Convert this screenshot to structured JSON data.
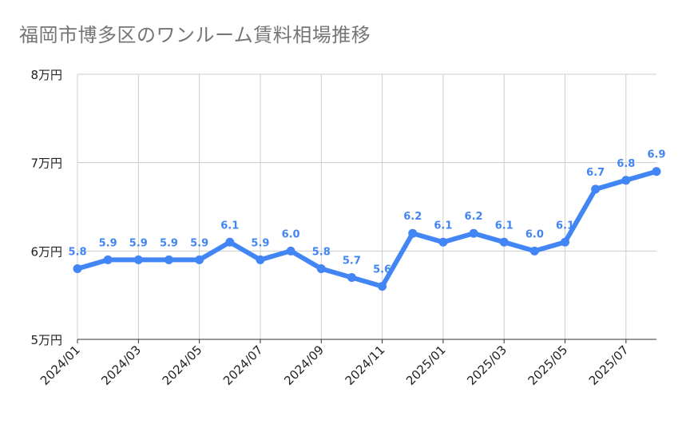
{
  "chart_data": {
    "type": "line",
    "title": "福岡市博多区のワンルーム賃料相場推移",
    "xlabel": "",
    "ylabel": "",
    "x": [
      "2024/01",
      "2024/02",
      "2024/03",
      "2024/04",
      "2024/05",
      "2024/06",
      "2024/07",
      "2024/08",
      "2024/09",
      "2024/10",
      "2024/11",
      "2024/12",
      "2025/01",
      "2025/02",
      "2025/03",
      "2025/04",
      "2025/05",
      "2025/06",
      "2025/07",
      "2025/08"
    ],
    "x_tick_labels": [
      "2024/01",
      "2024/03",
      "2024/05",
      "2024/07",
      "2024/09",
      "2024/11",
      "2025/01",
      "2025/03",
      "2025/05",
      "2025/07"
    ],
    "series": [
      {
        "name": "賃料",
        "values": [
          5.8,
          5.9,
          5.9,
          5.9,
          5.9,
          6.1,
          5.9,
          6.0,
          5.8,
          5.7,
          5.6,
          6.2,
          6.1,
          6.2,
          6.1,
          6.0,
          6.1,
          6.7,
          6.8,
          6.9
        ],
        "data_labels": [
          "5.8",
          "5.9",
          "5.9",
          "5.9",
          "5.9",
          "6.1",
          "5.9",
          "6.0",
          "5.8",
          "5.7",
          "5.6",
          "6.2",
          "6.1",
          "6.2",
          "6.1",
          "6.0",
          "6.1",
          "6.7",
          "6.8",
          "6.9"
        ]
      }
    ],
    "ylim": [
      5,
      8
    ],
    "y_ticks": [
      5,
      6,
      7,
      8
    ],
    "y_tick_labels": [
      "5万円",
      "6万円",
      "7万円",
      "8万円"
    ],
    "grid": true,
    "legend": "none",
    "colors": {
      "line": "#4285f4",
      "data_label": "#4285f4",
      "grid": "#cccccc",
      "axis": "#333333"
    }
  }
}
